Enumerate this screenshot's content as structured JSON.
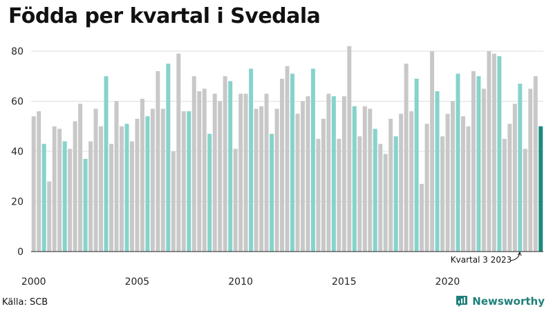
{
  "title": "Födda per kvartal i Svedala",
  "source": "Källa: SCB",
  "brand": "Newsworthy",
  "annotation": "Kvartal 3 2023",
  "colors": {
    "grey": "#c8c8c8",
    "teal": "#86d3cb",
    "highlight": "#1a8b82",
    "grid": "#dddddd",
    "axis": "#222222"
  },
  "chart_data": {
    "type": "bar",
    "x_start": "2000 Q1",
    "x_tick_labels": [
      "2000",
      "2005",
      "2010",
      "2015",
      "2020"
    ],
    "ylim": [
      0,
      85
    ],
    "y_ticks": [
      0,
      20,
      40,
      60,
      80
    ],
    "grid": true,
    "highlight_quarter": 3,
    "highlight_last": true,
    "values": [
      54,
      56,
      43,
      28,
      50,
      49,
      44,
      41,
      52,
      59,
      37,
      44,
      57,
      50,
      70,
      43,
      60,
      50,
      51,
      44,
      53,
      61,
      54,
      57,
      72,
      57,
      75,
      40,
      79,
      56,
      56,
      70,
      64,
      65,
      47,
      63,
      60,
      70,
      68,
      41,
      63,
      63,
      73,
      57,
      58,
      63,
      47,
      57,
      69,
      74,
      71,
      55,
      60,
      62,
      73,
      45,
      53,
      63,
      62,
      45,
      62,
      82,
      58,
      46,
      58,
      57,
      49,
      43,
      39,
      53,
      46,
      55,
      75,
      56,
      69,
      27,
      51,
      80,
      64,
      46,
      55,
      60,
      71,
      54,
      50,
      72,
      70,
      65,
      80,
      79,
      78,
      45,
      51,
      59,
      67,
      41,
      65,
      70,
      50
    ]
  }
}
